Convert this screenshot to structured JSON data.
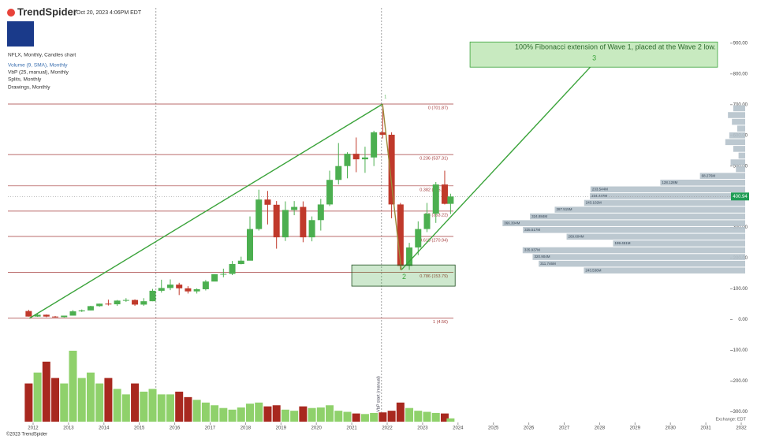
{
  "header": {
    "brand": "TrendSpider",
    "timestamp": "Oct 20, 2023 4:06PM EDT",
    "legend": [
      "NFLX, Monthly, Candles chart",
      "Volume (9, SMA), Monthly",
      "VbP (25, manual), Monthly",
      "Splits, Monthly",
      "Drawings, Monthly"
    ],
    "copyright": "©2023 TrendSpider",
    "exchange": "Exchange: EDT"
  },
  "chart_data": {
    "type": "candlestick",
    "xlim": [
      2011.065,
      2032.445
    ],
    "ylim": [
      -345,
      1015
    ],
    "xticks": [
      2012,
      2013,
      2014,
      2015,
      2016,
      2017,
      2018,
      2019,
      2020,
      2021,
      2022,
      2023,
      2024,
      2025,
      2026,
      2027,
      2028,
      2029,
      2030,
      2031,
      2032
    ],
    "yticks": [
      {
        "value": 900,
        "label": "900.00"
      },
      {
        "value": 800,
        "label": "800.00"
      },
      {
        "value": 700,
        "label": "700.00"
      },
      {
        "value": 600,
        "label": "600.00"
      },
      {
        "value": 500,
        "label": "500.00"
      },
      {
        "value": 400,
        "label": "400.00"
      },
      {
        "value": 300,
        "label": "300.00"
      },
      {
        "value": 200,
        "label": "200.00"
      },
      {
        "value": 100,
        "label": "100.00"
      },
      {
        "value": 0,
        "label": "0.00"
      },
      {
        "value": -100,
        "label": "-100.00"
      },
      {
        "value": -200,
        "label": "-200.00"
      },
      {
        "value": -300,
        "label": "-300.00"
      }
    ],
    "up_color": "#4caf50",
    "down_color": "#c0392b",
    "volume_up_color": "#8fd16b",
    "volume_down_color": "#a8281f",
    "last_price": {
      "value": 400.94,
      "label": "400.94",
      "color": "#1f9d55"
    },
    "candles": [
      {
        "x": 2011.875,
        "open": 28,
        "high": 32,
        "low": 10,
        "close": 10,
        "volume": 700
      },
      {
        "x": 2012.125,
        "open": 10,
        "high": 18,
        "low": 9,
        "close": 16,
        "volume": 900
      },
      {
        "x": 2012.375,
        "open": 16,
        "high": 17,
        "low": 8,
        "close": 10,
        "volume": 1100
      },
      {
        "x": 2012.625,
        "open": 10,
        "high": 12,
        "low": 7,
        "close": 8,
        "volume": 800
      },
      {
        "x": 2012.875,
        "open": 8,
        "high": 13,
        "low": 7,
        "close": 13,
        "volume": 700
      },
      {
        "x": 2013.125,
        "open": 13,
        "high": 31,
        "low": 13,
        "close": 27,
        "volume": 1300
      },
      {
        "x": 2013.375,
        "open": 27,
        "high": 33,
        "low": 25,
        "close": 30,
        "volume": 800
      },
      {
        "x": 2013.625,
        "open": 30,
        "high": 45,
        "low": 30,
        "close": 44,
        "volume": 900
      },
      {
        "x": 2013.875,
        "open": 44,
        "high": 52,
        "low": 42,
        "close": 52,
        "volume": 700
      },
      {
        "x": 2014.125,
        "open": 52,
        "high": 65,
        "low": 46,
        "close": 50,
        "volume": 800
      },
      {
        "x": 2014.375,
        "open": 50,
        "high": 64,
        "low": 45,
        "close": 62,
        "volume": 600
      },
      {
        "x": 2014.625,
        "open": 62,
        "high": 70,
        "low": 58,
        "close": 64,
        "volume": 500
      },
      {
        "x": 2014.875,
        "open": 64,
        "high": 66,
        "low": 45,
        "close": 49,
        "volume": 700
      },
      {
        "x": 2015.125,
        "open": 49,
        "high": 70,
        "low": 45,
        "close": 60,
        "volume": 550
      },
      {
        "x": 2015.375,
        "open": 60,
        "high": 100,
        "low": 60,
        "close": 94,
        "volume": 600
      },
      {
        "x": 2015.625,
        "open": 94,
        "high": 130,
        "low": 88,
        "close": 103,
        "volume": 500
      },
      {
        "x": 2015.875,
        "open": 103,
        "high": 131,
        "low": 96,
        "close": 114,
        "volume": 500
      },
      {
        "x": 2016.125,
        "open": 114,
        "high": 120,
        "low": 80,
        "close": 102,
        "volume": 550
      },
      {
        "x": 2016.375,
        "open": 102,
        "high": 109,
        "low": 85,
        "close": 92,
        "volume": 450
      },
      {
        "x": 2016.625,
        "open": 92,
        "high": 102,
        "low": 85,
        "close": 99,
        "volume": 400
      },
      {
        "x": 2016.875,
        "open": 99,
        "high": 129,
        "low": 95,
        "close": 124,
        "volume": 350
      },
      {
        "x": 2017.125,
        "open": 124,
        "high": 148,
        "low": 125,
        "close": 148,
        "volume": 300
      },
      {
        "x": 2017.375,
        "open": 148,
        "high": 166,
        "low": 138,
        "close": 149,
        "volume": 250
      },
      {
        "x": 2017.625,
        "open": 149,
        "high": 191,
        "low": 145,
        "close": 181,
        "volume": 220
      },
      {
        "x": 2017.875,
        "open": 181,
        "high": 205,
        "low": 180,
        "close": 192,
        "volume": 260
      },
      {
        "x": 2018.125,
        "open": 192,
        "high": 336,
        "low": 195,
        "close": 295,
        "volume": 330
      },
      {
        "x": 2018.375,
        "open": 295,
        "high": 423,
        "low": 290,
        "close": 391,
        "volume": 350
      },
      {
        "x": 2018.625,
        "open": 391,
        "high": 419,
        "low": 310,
        "close": 374,
        "volume": 280
      },
      {
        "x": 2018.875,
        "open": 374,
        "high": 386,
        "low": 231,
        "close": 268,
        "volume": 300
      },
      {
        "x": 2019.125,
        "open": 268,
        "high": 385,
        "low": 256,
        "close": 357,
        "volume": 220
      },
      {
        "x": 2019.375,
        "open": 357,
        "high": 386,
        "low": 340,
        "close": 367,
        "volume": 200
      },
      {
        "x": 2019.625,
        "open": 367,
        "high": 385,
        "low": 252,
        "close": 268,
        "volume": 280
      },
      {
        "x": 2019.875,
        "open": 268,
        "high": 336,
        "low": 255,
        "close": 324,
        "volume": 250
      },
      {
        "x": 2020.125,
        "open": 324,
        "high": 393,
        "low": 290,
        "close": 375,
        "volume": 260
      },
      {
        "x": 2020.375,
        "open": 375,
        "high": 485,
        "low": 370,
        "close": 455,
        "volume": 300
      },
      {
        "x": 2020.625,
        "open": 455,
        "high": 575,
        "low": 440,
        "close": 500,
        "volume": 200
      },
      {
        "x": 2020.875,
        "open": 500,
        "high": 545,
        "low": 460,
        "close": 540,
        "volume": 180
      },
      {
        "x": 2021.125,
        "open": 540,
        "high": 593,
        "low": 480,
        "close": 522,
        "volume": 150
      },
      {
        "x": 2021.375,
        "open": 522,
        "high": 563,
        "low": 478,
        "close": 528,
        "volume": 140
      },
      {
        "x": 2021.625,
        "open": 528,
        "high": 615,
        "low": 500,
        "close": 610,
        "volume": 160
      },
      {
        "x": 2021.875,
        "open": 610,
        "high": 700,
        "low": 590,
        "close": 602,
        "volume": 170
      },
      {
        "x": 2022.125,
        "open": 602,
        "high": 610,
        "low": 330,
        "close": 375,
        "volume": 200
      },
      {
        "x": 2022.375,
        "open": 375,
        "high": 380,
        "low": 162,
        "close": 175,
        "volume": 350
      },
      {
        "x": 2022.625,
        "open": 175,
        "high": 250,
        "low": 162,
        "close": 235,
        "volume": 250
      },
      {
        "x": 2022.875,
        "open": 235,
        "high": 320,
        "low": 210,
        "close": 295,
        "volume": 200
      },
      {
        "x": 2023.125,
        "open": 295,
        "high": 380,
        "low": 285,
        "close": 345,
        "volume": 180
      },
      {
        "x": 2023.375,
        "open": 345,
        "high": 448,
        "low": 315,
        "close": 440,
        "volume": 160
      },
      {
        "x": 2023.625,
        "open": 440,
        "high": 485,
        "low": 375,
        "close": 377,
        "volume": 150
      },
      {
        "x": 2023.79,
        "open": 377,
        "high": 410,
        "low": 344,
        "close": 400.94,
        "volume": 60
      }
    ],
    "fib_levels": [
      {
        "value": 701.87,
        "label": "0 (701.87)"
      },
      {
        "value": 537.31,
        "label": "0.236 (537.31)"
      },
      {
        "value": 435.5,
        "label": "0.382 (435.50)"
      },
      {
        "value": 353.22,
        "label": "0.5 (353.22)"
      },
      {
        "value": 270.94,
        "label": "0.618 (270.94)"
      },
      {
        "value": 153.79,
        "label": "0.786 (153.79)"
      },
      {
        "value": 4.56,
        "label": "1 (4.56)"
      }
    ],
    "fib_color": "#a33a3a",
    "volume_profile": {
      "color": "#b5c2cb",
      "step": 22,
      "levels": [
        160,
        182,
        204,
        226,
        248,
        270,
        292,
        314,
        336,
        358,
        380,
        402,
        424,
        446,
        468,
        490,
        512,
        534,
        556,
        578,
        600,
        622,
        644,
        666,
        688
      ],
      "volumes": [
        243.536,
        311.746,
        320.904,
        335.937,
        199.451,
        269.604,
        335.517,
        366.304,
        324.884,
        287.515,
        243.102,
        234.447,
        233.544,
        128.128,
        68.276,
        14,
        22,
        10,
        18,
        30,
        24,
        12,
        20,
        26,
        18
      ],
      "value_labels": [
        "243.536M",
        "311.746M",
        "320.904M",
        "335.937M",
        "199.451M",
        "269.604M",
        "335.517M",
        "366.304M",
        "324.884M",
        "287.515M",
        "243.102M",
        "234.447M",
        "233.544M",
        "128.128M",
        "68.276M",
        null,
        null,
        null,
        null,
        null,
        null,
        null,
        null,
        null,
        null
      ]
    },
    "trendlines": [
      {
        "color": "#3aa33a",
        "x": [
          2011.9,
          2021.87
        ],
        "y": [
          4.56,
          701.87
        ]
      },
      {
        "color": "#3aa33a",
        "x": [
          2022.4,
          2027.88
        ],
        "y": [
          162,
          840
        ]
      },
      {
        "color": "#9c8a3a",
        "x": [
          2021.87,
          2022.4
        ],
        "y": [
          701.87,
          162
        ]
      }
    ],
    "vlines": [
      2015.47,
      2021.84
    ],
    "vline_label": "VbP start (manual)",
    "zone": {
      "x": [
        2021.0,
        2023.92
      ],
      "y": [
        109,
        178
      ],
      "color": "#3aa33a"
    },
    "annotation": {
      "text": "100% Fibonacci extension of Wave 1, placed at the Wave 2 low.",
      "x": [
        2024.34,
        2031.33
      ],
      "y": [
        822,
        904
      ]
    },
    "wave_labels": [
      {
        "label": "1",
        "x": 2021.95,
        "y": 725
      },
      {
        "label": "2",
        "x": 2022.48,
        "y": 138
      },
      {
        "label": "3",
        "x": 2027.85,
        "y": 850
      }
    ]
  }
}
